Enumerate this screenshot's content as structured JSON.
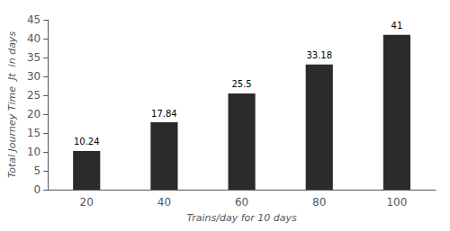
{
  "chart_data": {
    "type": "bar",
    "categories": [
      "20",
      "40",
      "60",
      "80",
      "100"
    ],
    "values": [
      10.24,
      17.84,
      25.5,
      33.18,
      41
    ],
    "color": "#2b2b2b",
    "xlabel": "Trains/day for 10 days",
    "ylabel": "Total Journey Time  Jt  in days",
    "ylim": [
      0,
      45
    ],
    "yticks": [
      0,
      5,
      10,
      15,
      20,
      25,
      30,
      35,
      40,
      45
    ],
    "data_labels": true,
    "grid": false
  }
}
